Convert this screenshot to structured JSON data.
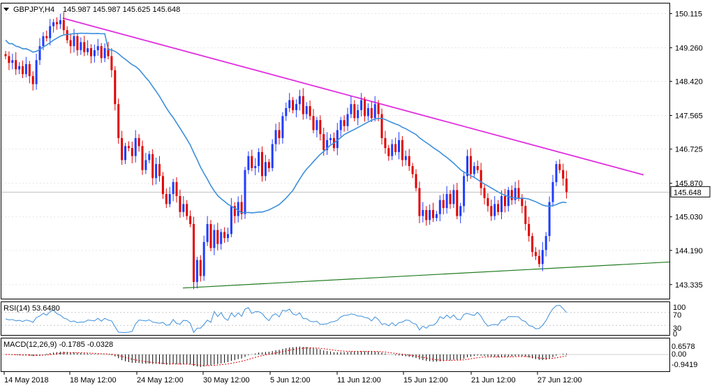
{
  "chart_data": {
    "type": "candlestick",
    "symbol": "GBPJPY,H4",
    "ohlc_header": "145.987 145.987 145.625 145.648",
    "last_price": "145.648",
    "y_ticks": [
      "150.115",
      "149.260",
      "148.420",
      "147.565",
      "146.725",
      "145.870",
      "145.030",
      "144.190",
      "143.335"
    ],
    "y_tick_values": [
      150.115,
      149.26,
      148.42,
      147.565,
      146.725,
      145.87,
      145.03,
      144.19,
      143.335
    ],
    "ylim": [
      143.0,
      150.35
    ],
    "x_ticks": [
      "14 May 2018",
      "18 May 12:00",
      "24 May 12:00",
      "30 May 12:00",
      "5 Jun 12:00",
      "11 Jun 12:00",
      "15 Jun 12:00",
      "21 Jun 12:00",
      "27 Jun 12:00"
    ],
    "colors": {
      "bull": "#1f3cff",
      "bear": "#e00000",
      "ma": "#3d8fdc",
      "trendline_top": "#e02ee0",
      "trendline_bottom": "#1e7a1e",
      "rsi": "#3d8fdc",
      "macd_signal": "#e00000",
      "macd_hist": "#000000"
    },
    "closes": [
      149.05,
      148.88,
      148.95,
      148.72,
      148.8,
      148.6,
      148.85,
      148.55,
      148.35,
      148.95,
      149.3,
      149.55,
      149.5,
      149.8,
      149.9,
      149.85,
      149.95,
      149.7,
      149.45,
      149.3,
      149.55,
      149.2,
      149.4,
      149.15,
      149.25,
      149.05,
      149.2,
      149.3,
      149.0,
      149.25,
      149.05,
      148.7,
      147.85,
      147.0,
      146.45,
      146.8,
      146.75,
      146.55,
      147.0,
      146.8,
      146.2,
      146.45,
      146.6,
      146.0,
      146.35,
      146.05,
      145.6,
      145.35,
      145.6,
      145.9,
      145.55,
      145.15,
      145.35,
      145.05,
      144.85,
      143.4,
      143.95,
      143.55,
      144.4,
      144.85,
      144.25,
      144.7,
      144.35,
      144.65,
      144.5,
      144.6,
      145.3,
      145.05,
      145.4,
      145.1,
      146.2,
      146.55,
      146.25,
      146.3,
      146.65,
      146.05,
      146.4,
      146.25,
      146.85,
      147.2,
      147.0,
      147.55,
      147.75,
      147.95,
      147.7,
      147.85,
      148.05,
      147.6,
      147.8,
      147.55,
      147.2,
      147.45,
      147.1,
      146.7,
      146.95,
      147.0,
      146.75,
      147.2,
      147.45,
      147.3,
      147.6,
      147.85,
      147.5,
      147.7,
      147.95,
      147.55,
      147.75,
      147.5,
      147.85,
      147.6,
      147.0,
      146.75,
      146.55,
      146.85,
      146.65,
      146.95,
      146.45,
      146.55,
      146.3,
      146.1,
      145.75,
      145.05,
      145.2,
      144.95,
      145.2,
      145.0,
      145.1,
      145.45,
      145.25,
      145.6,
      145.35,
      145.7,
      145.05,
      145.3,
      146.05,
      146.55,
      146.1,
      146.3,
      146.2,
      145.75,
      145.5,
      145.3,
      145.05,
      145.35,
      145.15,
      145.55,
      145.3,
      145.7,
      145.45,
      145.75,
      145.5,
      145.3,
      144.85,
      144.55,
      144.15,
      144.05,
      143.85,
      144.2,
      144.55,
      145.4,
      145.9,
      146.35,
      146.2,
      145.987,
      145.648
    ],
    "rsi": {
      "label": "RSI(14) 53.6480",
      "ticks": [
        "100",
        "70",
        "30",
        "0"
      ]
    },
    "macd": {
      "label": "MACD(12,26,9) -0.1785 -0.0328",
      "ticks": [
        "0.6578",
        "0.00",
        "-0.9419"
      ]
    }
  }
}
